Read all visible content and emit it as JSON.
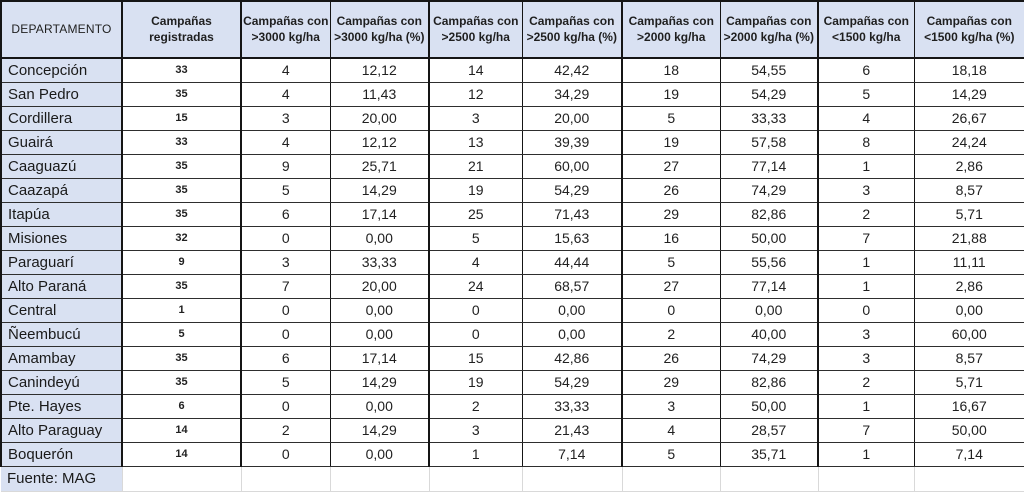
{
  "chart_data": {
    "type": "table",
    "columns": [
      "DEPARTAMENTO",
      "Campañas registradas",
      "Campañas con >3000 kg/ha",
      "Campañas con >3000 kg/ha (%)",
      "Campañas con >2500 kg/ha",
      "Campañas con >2500 kg/ha (%)",
      "Campañas con >2000 kg/ha",
      "Campañas con >2000 kg/ha (%)",
      "Campañas con <1500 kg/ha",
      "Campañas con <1500 kg/ha (%)"
    ],
    "rows": [
      [
        "Concepción",
        "33",
        "4",
        "12,12",
        "14",
        "42,42",
        "18",
        "54,55",
        "6",
        "18,18"
      ],
      [
        "San Pedro",
        "35",
        "4",
        "11,43",
        "12",
        "34,29",
        "19",
        "54,29",
        "5",
        "14,29"
      ],
      [
        "Cordillera",
        "15",
        "3",
        "20,00",
        "3",
        "20,00",
        "5",
        "33,33",
        "4",
        "26,67"
      ],
      [
        "Guairá",
        "33",
        "4",
        "12,12",
        "13",
        "39,39",
        "19",
        "57,58",
        "8",
        "24,24"
      ],
      [
        "Caaguazú",
        "35",
        "9",
        "25,71",
        "21",
        "60,00",
        "27",
        "77,14",
        "1",
        "2,86"
      ],
      [
        "Caazapá",
        "35",
        "5",
        "14,29",
        "19",
        "54,29",
        "26",
        "74,29",
        "3",
        "8,57"
      ],
      [
        "Itapúa",
        "35",
        "6",
        "17,14",
        "25",
        "71,43",
        "29",
        "82,86",
        "2",
        "5,71"
      ],
      [
        "Misiones",
        "32",
        "0",
        "0,00",
        "5",
        "15,63",
        "16",
        "50,00",
        "7",
        "21,88"
      ],
      [
        "Paraguarí",
        "9",
        "3",
        "33,33",
        "4",
        "44,44",
        "5",
        "55,56",
        "1",
        "11,11"
      ],
      [
        "Alto Paraná",
        "35",
        "7",
        "20,00",
        "24",
        "68,57",
        "27",
        "77,14",
        "1",
        "2,86"
      ],
      [
        "Central",
        "1",
        "0",
        "0,00",
        "0",
        "0,00",
        "0",
        "0,00",
        "0",
        "0,00"
      ],
      [
        "Ñeembucú",
        "5",
        "0",
        "0,00",
        "0",
        "0,00",
        "2",
        "40,00",
        "3",
        "60,00"
      ],
      [
        "Amambay",
        "35",
        "6",
        "17,14",
        "15",
        "42,86",
        "26",
        "74,29",
        "3",
        "8,57"
      ],
      [
        "Canindeyú",
        "35",
        "5",
        "14,29",
        "19",
        "54,29",
        "29",
        "82,86",
        "2",
        "5,71"
      ],
      [
        "Pte. Hayes",
        "6",
        "0",
        "0,00",
        "2",
        "33,33",
        "3",
        "50,00",
        "1",
        "16,67"
      ],
      [
        "Alto Paraguay",
        "14",
        "2",
        "14,29",
        "3",
        "21,43",
        "4",
        "28,57",
        "7",
        "50,00"
      ],
      [
        "Boquerón",
        "14",
        "0",
        "0,00",
        "1",
        "7,14",
        "5",
        "35,71",
        "1",
        "7,14"
      ]
    ],
    "source_note": "Fuente: MAG",
    "layout": {
      "grid": "on",
      "header_background": "#D9E1F2",
      "first_column_background": "#D9E1F2"
    }
  },
  "colors": {
    "header_bg": "#D9E1F2",
    "border_dark": "#151515",
    "row_line": "#2e2e2e",
    "footer_grid": "#d9d9d9",
    "text": "#212121"
  }
}
